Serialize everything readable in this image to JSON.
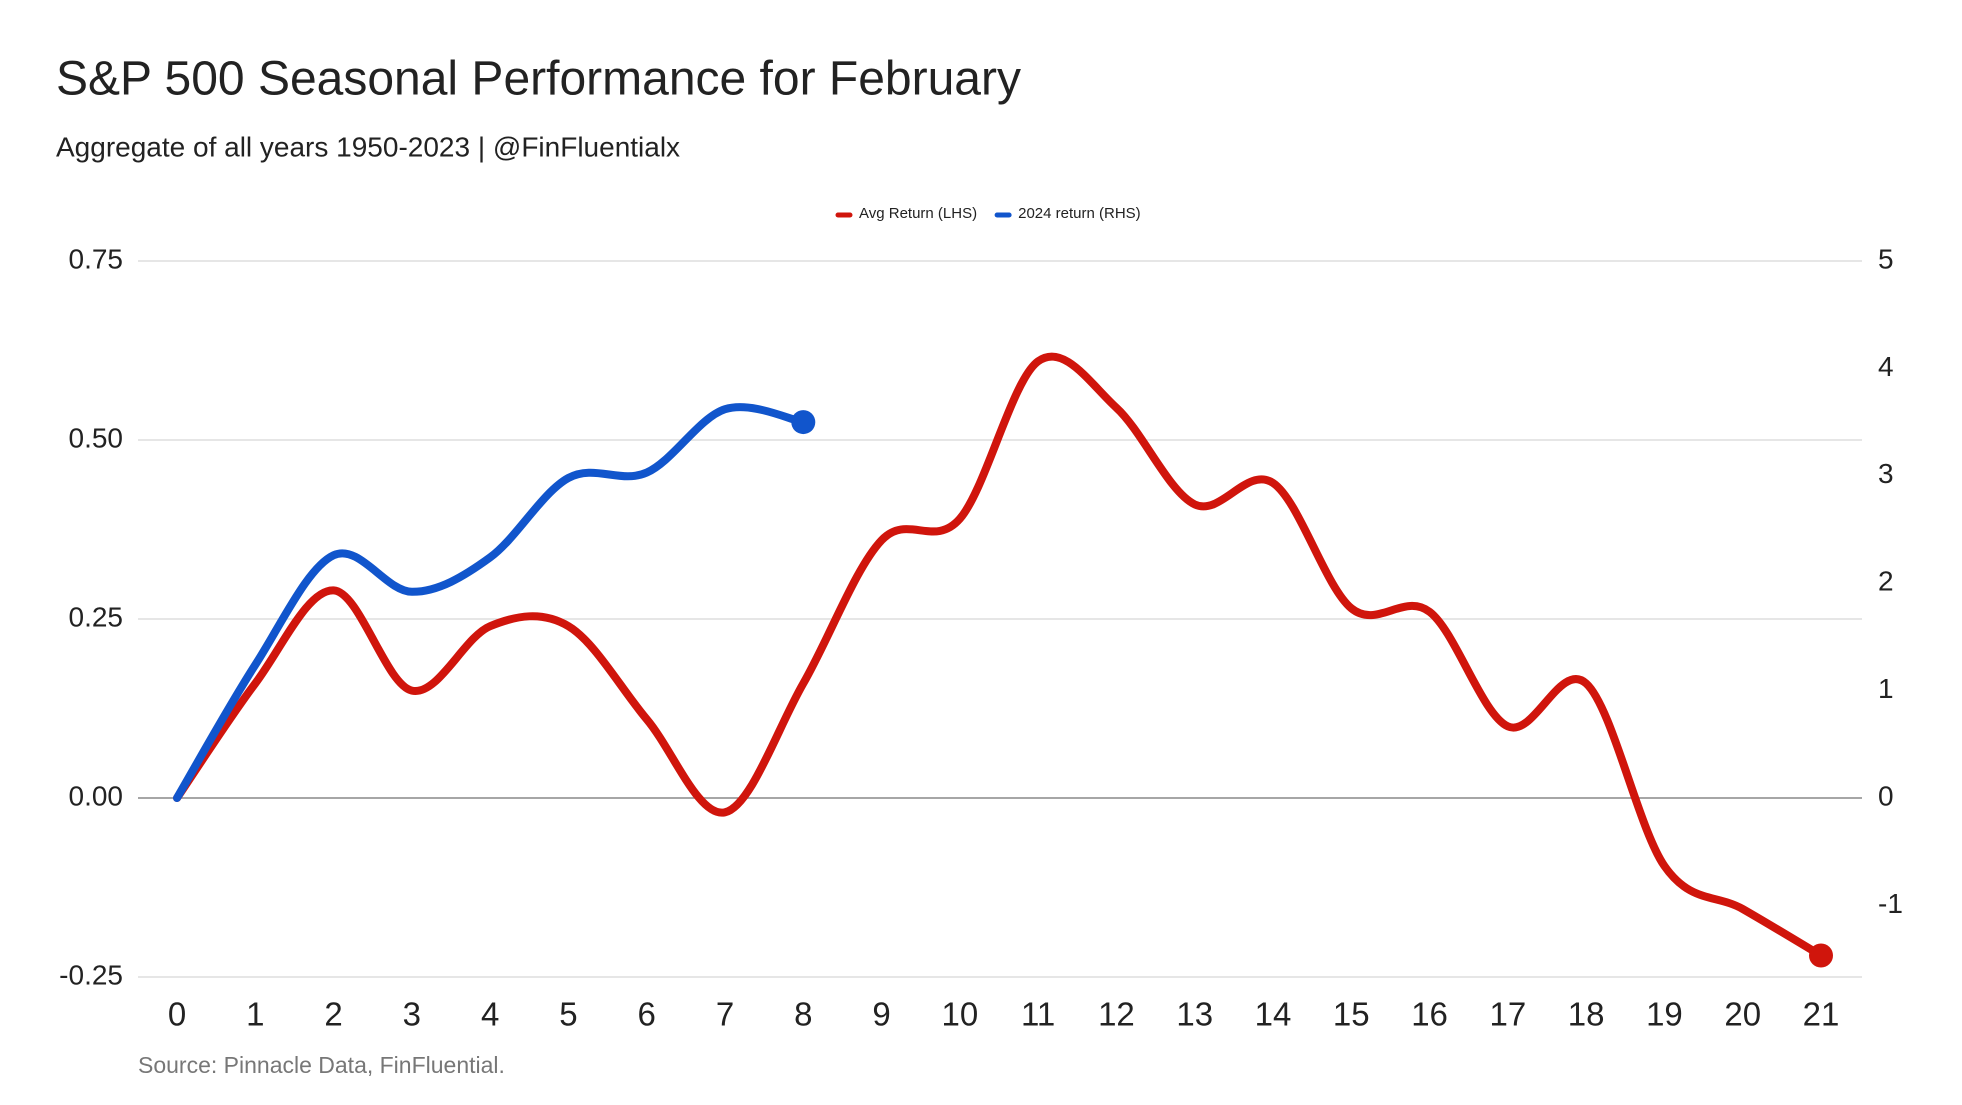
{
  "chart_data": {
    "type": "line",
    "title": "S&P 500 Seasonal Performance for February",
    "subtitle": "Aggregate of all years 1950-2023 | @FinFluentialx",
    "source": "Source: Pinnacle Data, FinFluential.",
    "x": [
      0,
      1,
      2,
      3,
      4,
      5,
      6,
      7,
      8,
      9,
      10,
      11,
      12,
      13,
      14,
      15,
      16,
      17,
      18,
      19,
      20,
      21
    ],
    "xlim": [
      0,
      21
    ],
    "xticks": [
      0,
      1,
      2,
      3,
      4,
      5,
      6,
      7,
      8,
      9,
      10,
      11,
      12,
      13,
      14,
      15,
      16,
      17,
      18,
      19,
      20,
      21
    ],
    "ylim": [
      -0.25,
      0.75
    ],
    "yticks": [
      {
        "value": -0.25,
        "label": "-0.25"
      },
      {
        "value": 0,
        "label": "0.00"
      },
      {
        "value": 0.25,
        "label": "0.25"
      },
      {
        "value": 0.5,
        "label": "0.50"
      },
      {
        "value": 0.75,
        "label": "0.75"
      }
    ],
    "y2lim": [
      -1.6667,
      5
    ],
    "y2ticks": [
      -1,
      0,
      1,
      2,
      3,
      4,
      5
    ],
    "grid": true,
    "legend": "top",
    "series": [
      {
        "name": "Avg Return (LHS)",
        "color": "#d0150c",
        "axis": "y",
        "values": [
          0,
          0.16,
          0.29,
          0.15,
          0.24,
          0.24,
          0.11,
          -0.02,
          0.16,
          0.36,
          0.39,
          0.61,
          0.545,
          0.41,
          0.44,
          0.265,
          0.26,
          0.1,
          0.16,
          -0.095,
          -0.155,
          -0.22
        ]
      },
      {
        "name": "2024 return (RHS)",
        "color": "#1155cc",
        "axis": "y2",
        "values": [
          0,
          1.24,
          2.26,
          1.92,
          2.24,
          2.98,
          3.03,
          3.62,
          3.5,
          null,
          null,
          null,
          null,
          null,
          null,
          null,
          null,
          null,
          null,
          null,
          null,
          null
        ]
      }
    ]
  }
}
